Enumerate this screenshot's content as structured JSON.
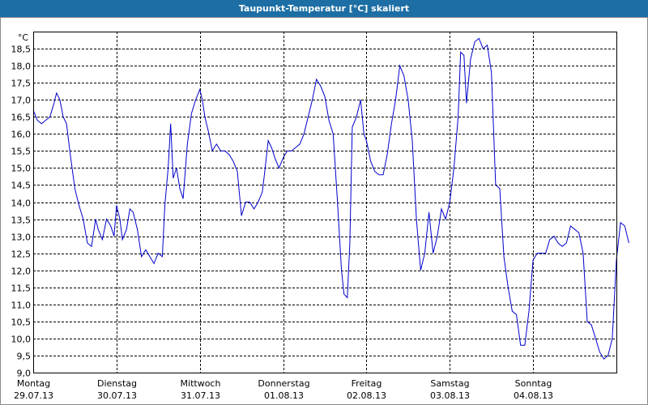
{
  "window": {
    "title": "Taupunkt-Temperatur [°C] skaliert"
  },
  "colors": {
    "title_bg": "#1c6ea4",
    "line": "#0000cc",
    "grid": "#000000"
  },
  "chart_data": {
    "type": "line",
    "title": "Taupunkt-Temperatur [°C] skaliert",
    "unit_label": "°C",
    "ylim": [
      9.0,
      19.0
    ],
    "y_ticks": [
      "9,0",
      "9,5",
      "10,0",
      "10,5",
      "11,0",
      "11,5",
      "12,0",
      "12,5",
      "13,0",
      "13,5",
      "14,0",
      "14,5",
      "15,0",
      "15,5",
      "16,0",
      "16,5",
      "17,0",
      "17,5",
      "18,0",
      "18,5"
    ],
    "xlim": [
      0,
      7
    ],
    "x_ticks": [
      {
        "day": "Montag",
        "date": "29.07.13"
      },
      {
        "day": "Dienstag",
        "date": "30.07.13"
      },
      {
        "day": "Mittwoch",
        "date": "31.07.13"
      },
      {
        "day": "Donnerstag",
        "date": "01.08.13"
      },
      {
        "day": "Freitag",
        "date": "02.08.13"
      },
      {
        "day": "Samstag",
        "date": "03.08.13"
      },
      {
        "day": "Sonntag",
        "date": "04.08.13"
      }
    ],
    "grid": true,
    "series": [
      {
        "points": [
          [
            0.0,
            16.7
          ],
          [
            0.05,
            16.4
          ],
          [
            0.1,
            16.3
          ],
          [
            0.15,
            16.4
          ],
          [
            0.2,
            16.5
          ],
          [
            0.25,
            16.9
          ],
          [
            0.28,
            17.2
          ],
          [
            0.32,
            17.0
          ],
          [
            0.36,
            16.5
          ],
          [
            0.4,
            16.3
          ],
          [
            0.45,
            15.3
          ],
          [
            0.5,
            14.4
          ],
          [
            0.55,
            13.9
          ],
          [
            0.6,
            13.5
          ],
          [
            0.65,
            12.8
          ],
          [
            0.7,
            12.7
          ],
          [
            0.75,
            13.5
          ],
          [
            0.78,
            13.2
          ],
          [
            0.83,
            12.9
          ],
          [
            0.88,
            13.5
          ],
          [
            0.93,
            13.3
          ],
          [
            0.97,
            13.0
          ],
          [
            1.0,
            13.9
          ],
          [
            1.04,
            13.5
          ],
          [
            1.07,
            12.9
          ],
          [
            1.12,
            13.2
          ],
          [
            1.16,
            13.8
          ],
          [
            1.2,
            13.7
          ],
          [
            1.25,
            13.2
          ],
          [
            1.3,
            12.4
          ],
          [
            1.35,
            12.6
          ],
          [
            1.4,
            12.4
          ],
          [
            1.45,
            12.2
          ],
          [
            1.5,
            12.5
          ],
          [
            1.55,
            12.4
          ],
          [
            1.58,
            13.9
          ],
          [
            1.62,
            15.0
          ],
          [
            1.65,
            16.3
          ],
          [
            1.68,
            14.7
          ],
          [
            1.72,
            15.0
          ],
          [
            1.76,
            14.4
          ],
          [
            1.8,
            14.1
          ],
          [
            1.85,
            15.7
          ],
          [
            1.9,
            16.6
          ],
          [
            1.95,
            17.0
          ],
          [
            2.0,
            17.3
          ],
          [
            2.03,
            17.0
          ],
          [
            2.06,
            16.5
          ],
          [
            2.1,
            16.1
          ],
          [
            2.15,
            15.5
          ],
          [
            2.2,
            15.7
          ],
          [
            2.25,
            15.5
          ],
          [
            2.3,
            15.5
          ],
          [
            2.35,
            15.4
          ],
          [
            2.4,
            15.2
          ],
          [
            2.45,
            14.9
          ],
          [
            2.5,
            13.6
          ],
          [
            2.55,
            14.0
          ],
          [
            2.6,
            14.0
          ],
          [
            2.65,
            13.8
          ],
          [
            2.7,
            14.0
          ],
          [
            2.75,
            14.3
          ],
          [
            2.78,
            14.9
          ],
          [
            2.82,
            15.8
          ],
          [
            2.86,
            15.6
          ],
          [
            2.9,
            15.3
          ],
          [
            2.95,
            15.0
          ],
          [
            3.0,
            15.3
          ],
          [
            3.05,
            15.5
          ],
          [
            3.1,
            15.5
          ],
          [
            3.15,
            15.6
          ],
          [
            3.2,
            15.7
          ],
          [
            3.25,
            16.0
          ],
          [
            3.3,
            16.5
          ],
          [
            3.35,
            17.0
          ],
          [
            3.4,
            17.6
          ],
          [
            3.45,
            17.4
          ],
          [
            3.5,
            17.1
          ],
          [
            3.55,
            16.4
          ],
          [
            3.6,
            16.0
          ],
          [
            3.65,
            14.1
          ],
          [
            3.7,
            12.0
          ],
          [
            3.73,
            11.3
          ],
          [
            3.77,
            11.2
          ],
          [
            3.8,
            12.8
          ],
          [
            3.83,
            16.2
          ],
          [
            3.88,
            16.5
          ],
          [
            3.93,
            17.0
          ],
          [
            3.97,
            16.0
          ],
          [
            4.0,
            15.8
          ],
          [
            4.05,
            15.2
          ],
          [
            4.1,
            14.9
          ],
          [
            4.15,
            14.8
          ],
          [
            4.2,
            14.8
          ],
          [
            4.25,
            15.4
          ],
          [
            4.3,
            16.3
          ],
          [
            4.35,
            17.0
          ],
          [
            4.4,
            18.0
          ],
          [
            4.45,
            17.7
          ],
          [
            4.5,
            17.0
          ],
          [
            4.55,
            15.8
          ],
          [
            4.6,
            13.5
          ],
          [
            4.65,
            12.0
          ],
          [
            4.7,
            12.5
          ],
          [
            4.75,
            13.7
          ],
          [
            4.8,
            12.5
          ],
          [
            4.85,
            13.0
          ],
          [
            4.9,
            13.8
          ],
          [
            4.95,
            13.5
          ],
          [
            5.0,
            14.0
          ],
          [
            5.05,
            15.0
          ],
          [
            5.1,
            16.5
          ],
          [
            5.13,
            18.4
          ],
          [
            5.17,
            18.3
          ],
          [
            5.2,
            16.9
          ],
          [
            5.25,
            18.2
          ],
          [
            5.3,
            18.7
          ],
          [
            5.35,
            18.8
          ],
          [
            5.4,
            18.5
          ],
          [
            5.45,
            18.6
          ],
          [
            5.5,
            17.8
          ],
          [
            5.55,
            14.5
          ],
          [
            5.6,
            14.4
          ],
          [
            5.65,
            12.4
          ],
          [
            5.7,
            11.5
          ],
          [
            5.75,
            10.8
          ],
          [
            5.8,
            10.7
          ],
          [
            5.85,
            9.8
          ],
          [
            5.9,
            9.8
          ],
          [
            5.95,
            10.8
          ],
          [
            6.0,
            12.3
          ],
          [
            6.05,
            12.5
          ],
          [
            6.1,
            12.5
          ],
          [
            6.15,
            12.5
          ],
          [
            6.2,
            12.9
          ],
          [
            6.25,
            13.0
          ],
          [
            6.3,
            12.8
          ],
          [
            6.35,
            12.7
          ],
          [
            6.4,
            12.8
          ],
          [
            6.45,
            13.3
          ],
          [
            6.5,
            13.2
          ],
          [
            6.55,
            13.1
          ],
          [
            6.6,
            12.5
          ],
          [
            6.65,
            10.5
          ],
          [
            6.7,
            10.4
          ],
          [
            6.75,
            10.0
          ],
          [
            6.8,
            9.6
          ],
          [
            6.85,
            9.4
          ],
          [
            6.9,
            9.5
          ],
          [
            6.95,
            10.0
          ],
          [
            7.0,
            12.3
          ],
          [
            7.05,
            13.4
          ],
          [
            7.1,
            13.3
          ],
          [
            7.15,
            12.8
          ]
        ]
      }
    ]
  }
}
